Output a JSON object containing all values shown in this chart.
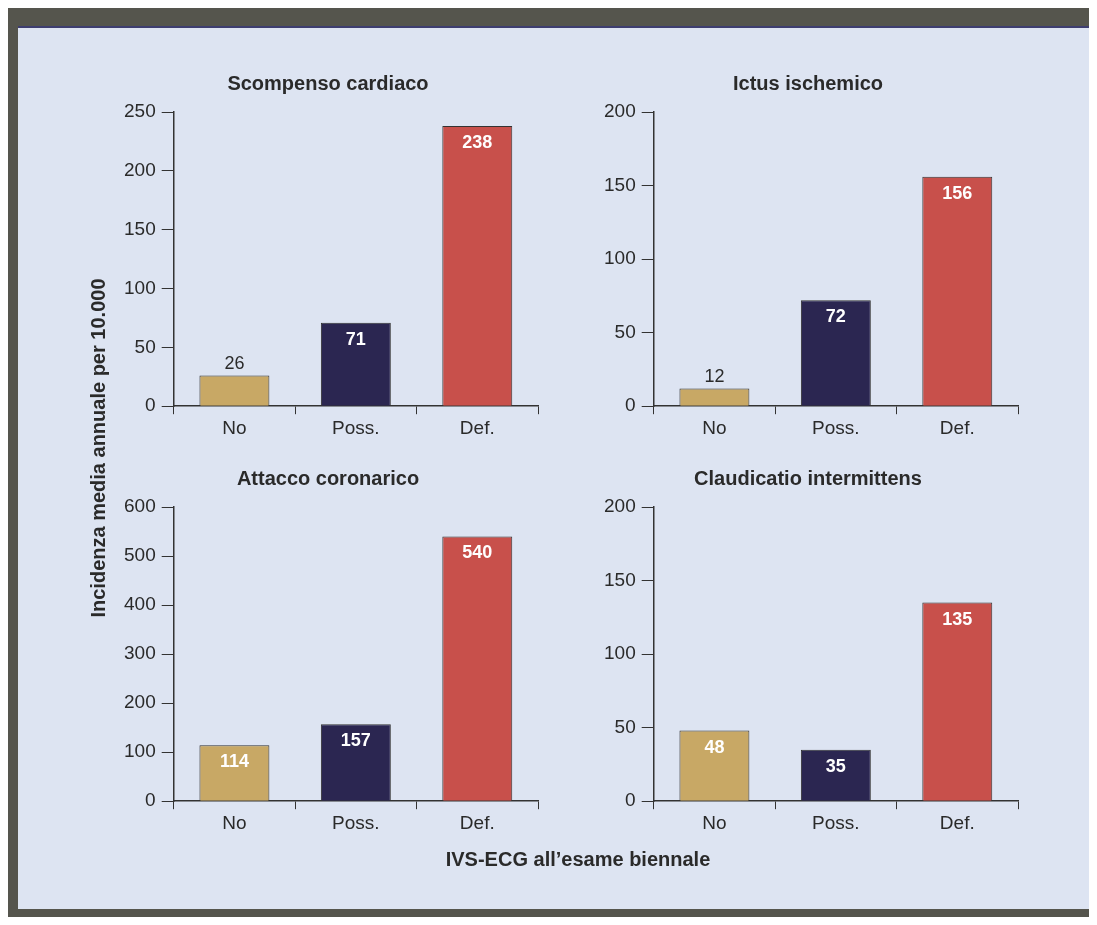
{
  "chart_data": [
    {
      "type": "bar",
      "title": "Scompenso cardiaco",
      "ylabel": "Incidenza media annuale per 10.000",
      "categories": [
        "No",
        "Poss.",
        "Def."
      ],
      "values": [
        26,
        71,
        238
      ],
      "colors": [
        "#c8a865",
        "#2b2651",
        "#c8504b"
      ],
      "ylim": [
        0,
        250
      ],
      "yticks": [
        0,
        50,
        100,
        150,
        200,
        250
      ],
      "data_labels": true,
      "grid": false,
      "legend": false
    },
    {
      "type": "bar",
      "title": "Ictus ischemico",
      "categories": [
        "No",
        "Poss.",
        "Def."
      ],
      "values": [
        12,
        72,
        156
      ],
      "colors": [
        "#c8a865",
        "#2b2651",
        "#c8504b"
      ],
      "ylim": [
        0,
        200
      ],
      "yticks": [
        0,
        50,
        100,
        150,
        200
      ],
      "data_labels": true,
      "grid": false,
      "legend": false
    },
    {
      "type": "bar",
      "title": "Attacco coronarico",
      "categories": [
        "No",
        "Poss.",
        "Def."
      ],
      "values": [
        114,
        157,
        540
      ],
      "colors": [
        "#c8a865",
        "#2b2651",
        "#c8504b"
      ],
      "ylim": [
        0,
        600
      ],
      "yticks": [
        0,
        100,
        200,
        300,
        400,
        500,
        600
      ],
      "data_labels": true,
      "grid": false,
      "legend": false
    },
    {
      "type": "bar",
      "title": "Claudicatio intermittens",
      "xlabel": "IVS-ECG all’esame biennale",
      "categories": [
        "No",
        "Poss.",
        "Def."
      ],
      "values": [
        48,
        35,
        135
      ],
      "colors": [
        "#c8a865",
        "#2b2651",
        "#c8504b"
      ],
      "ylim": [
        0,
        200
      ],
      "yticks": [
        0,
        50,
        100,
        150,
        200
      ],
      "data_labels": true,
      "grid": false,
      "legend": false
    }
  ]
}
